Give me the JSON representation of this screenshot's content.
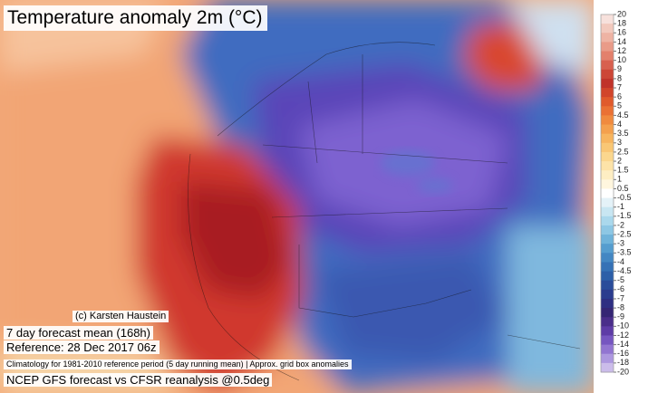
{
  "header": {
    "title": "Temperature anomaly 2m (°C)"
  },
  "footer": {
    "credit": "(c) Karsten Haustein",
    "forecast": "7 day forecast mean (168h)",
    "reference": "Reference: 28 Dec 2017 06z",
    "climatology": "Climatology for 1981-2010 reference period (5 day running mean) | Approx. grid box anomalies",
    "source": "NCEP GFS forecast vs CFSR reanalysis @0.5deg"
  },
  "colorbar": {
    "labels": [
      20,
      18,
      16,
      14,
      12,
      10,
      9,
      8,
      7,
      6,
      5,
      4.5,
      4,
      3.5,
      3,
      2.5,
      2,
      1.5,
      1,
      0.5,
      -0.5,
      -1,
      -1.5,
      -2,
      -2.5,
      -3,
      -3.5,
      -4,
      -4.5,
      -5,
      -6,
      -7,
      -8,
      -9,
      -10,
      -12,
      -14,
      -16,
      -18,
      -20
    ],
    "colors": [
      "#f7e1dc",
      "#f2c9bd",
      "#eeb3a3",
      "#e99b88",
      "#e3806c",
      "#d8604f",
      "#cc4636",
      "#c0332a",
      "#d1452b",
      "#e05a2c",
      "#ea7134",
      "#f08a3e",
      "#f4a04d",
      "#f7b55f",
      "#f9c775",
      "#fbd78e",
      "#fde3a8",
      "#feeec3",
      "#fff6de",
      "#ffffff",
      "#e4f2f8",
      "#c8e6f2",
      "#aad8ec",
      "#8dc7e4",
      "#6fb3da",
      "#559dcf",
      "#4387c3",
      "#3572b6",
      "#2c5fa8",
      "#2a4c9a",
      "#2b3c8e",
      "#2e2f82",
      "#352674",
      "#4a2e8a",
      "#5e3ca6",
      "#7656c0",
      "#9275d1",
      "#ad98df",
      "#cbbcea"
    ]
  }
}
